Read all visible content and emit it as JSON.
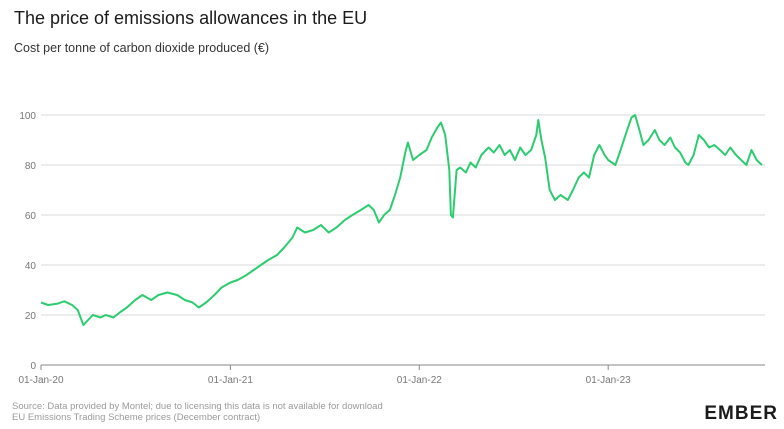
{
  "header": {
    "title": "The price of emissions allowances in the EU",
    "subtitle": "Cost per tonne of carbon dioxide produced (€)"
  },
  "footer": {
    "source_line1": "Source: Data provided by Montel; due to licensing this data is not available for download",
    "source_line2": "EU Emissions Trading Scheme prices (December contract)",
    "logo_text": "EMBER"
  },
  "colors": {
    "series": "#2ecc71",
    "grid": "#d9d9d9",
    "axis": "#8a8a8a"
  },
  "chart_data": {
    "type": "line",
    "title": "The price of emissions allowances in the EU",
    "subtitle": "Cost per tonne of carbon dioxide produced (€)",
    "xlabel": "",
    "ylabel": "",
    "ylim": [
      0,
      100
    ],
    "yticks": [
      0,
      20,
      40,
      60,
      80,
      100
    ],
    "xlim": [
      "2020-01-01",
      "2023-10-31"
    ],
    "xticks": [
      {
        "date": "2020-01-01",
        "label": "01-Jan-20"
      },
      {
        "date": "2021-01-01",
        "label": "01-Jan-21"
      },
      {
        "date": "2022-01-01",
        "label": "01-Jan-22"
      },
      {
        "date": "2023-01-01",
        "label": "01-Jan-23"
      }
    ],
    "grid": "horizontal",
    "legend": "none",
    "series": [
      {
        "values": [
          [
            "2020-01-01",
            25
          ],
          [
            "2020-01-15",
            24
          ],
          [
            "2020-02-01",
            24.5
          ],
          [
            "2020-02-15",
            25.5
          ],
          [
            "2020-03-01",
            24
          ],
          [
            "2020-03-12",
            22
          ],
          [
            "2020-03-23",
            16
          ],
          [
            "2020-04-01",
            18
          ],
          [
            "2020-04-10",
            20
          ],
          [
            "2020-04-25",
            19
          ],
          [
            "2020-05-05",
            20
          ],
          [
            "2020-05-20",
            19
          ],
          [
            "2020-06-01",
            21
          ],
          [
            "2020-06-15",
            23
          ],
          [
            "2020-07-01",
            26
          ],
          [
            "2020-07-15",
            28
          ],
          [
            "2020-08-01",
            26
          ],
          [
            "2020-08-15",
            28
          ],
          [
            "2020-09-01",
            29
          ],
          [
            "2020-09-20",
            28
          ],
          [
            "2020-10-05",
            26
          ],
          [
            "2020-10-20",
            25
          ],
          [
            "2020-11-01",
            23
          ],
          [
            "2020-11-15",
            25
          ],
          [
            "2020-12-01",
            28
          ],
          [
            "2020-12-15",
            31
          ],
          [
            "2021-01-01",
            33
          ],
          [
            "2021-01-15",
            34
          ],
          [
            "2021-02-01",
            36
          ],
          [
            "2021-02-15",
            38
          ],
          [
            "2021-03-01",
            40
          ],
          [
            "2021-03-15",
            42
          ],
          [
            "2021-04-01",
            44
          ],
          [
            "2021-04-15",
            47
          ],
          [
            "2021-05-01",
            51
          ],
          [
            "2021-05-10",
            55
          ],
          [
            "2021-05-25",
            53
          ],
          [
            "2021-06-10",
            54
          ],
          [
            "2021-06-25",
            56
          ],
          [
            "2021-07-10",
            53
          ],
          [
            "2021-07-25",
            55
          ],
          [
            "2021-08-10",
            58
          ],
          [
            "2021-08-25",
            60
          ],
          [
            "2021-09-10",
            62
          ],
          [
            "2021-09-25",
            64
          ],
          [
            "2021-10-05",
            62
          ],
          [
            "2021-10-15",
            57
          ],
          [
            "2021-10-25",
            60
          ],
          [
            "2021-11-05",
            62
          ],
          [
            "2021-11-15",
            68
          ],
          [
            "2021-11-25",
            75
          ],
          [
            "2021-12-05",
            85
          ],
          [
            "2021-12-10",
            89
          ],
          [
            "2021-12-20",
            82
          ],
          [
            "2022-01-01",
            84
          ],
          [
            "2022-01-15",
            86
          ],
          [
            "2022-01-25",
            91
          ],
          [
            "2022-02-05",
            95
          ],
          [
            "2022-02-12",
            97
          ],
          [
            "2022-02-20",
            92
          ],
          [
            "2022-02-28",
            78
          ],
          [
            "2022-03-03",
            60
          ],
          [
            "2022-03-07",
            59
          ],
          [
            "2022-03-14",
            78
          ],
          [
            "2022-03-21",
            79
          ],
          [
            "2022-04-01",
            77
          ],
          [
            "2022-04-10",
            81
          ],
          [
            "2022-04-20",
            79
          ],
          [
            "2022-05-01",
            84
          ],
          [
            "2022-05-15",
            87
          ],
          [
            "2022-05-25",
            85
          ],
          [
            "2022-06-05",
            88
          ],
          [
            "2022-06-15",
            84
          ],
          [
            "2022-06-25",
            86
          ],
          [
            "2022-07-05",
            82
          ],
          [
            "2022-07-15",
            87
          ],
          [
            "2022-07-25",
            84
          ],
          [
            "2022-08-05",
            86
          ],
          [
            "2022-08-15",
            92
          ],
          [
            "2022-08-19",
            98
          ],
          [
            "2022-08-25",
            90
          ],
          [
            "2022-09-01",
            83
          ],
          [
            "2022-09-10",
            70
          ],
          [
            "2022-09-20",
            66
          ],
          [
            "2022-10-01",
            68
          ],
          [
            "2022-10-15",
            66
          ],
          [
            "2022-10-25",
            70
          ],
          [
            "2022-11-05",
            75
          ],
          [
            "2022-11-15",
            77
          ],
          [
            "2022-11-25",
            75
          ],
          [
            "2022-12-05",
            84
          ],
          [
            "2022-12-15",
            88
          ],
          [
            "2022-12-25",
            84
          ],
          [
            "2023-01-01",
            82
          ],
          [
            "2023-01-15",
            80
          ],
          [
            "2023-01-25",
            86
          ],
          [
            "2023-02-05",
            93
          ],
          [
            "2023-02-15",
            99
          ],
          [
            "2023-02-22",
            100
          ],
          [
            "2023-03-01",
            95
          ],
          [
            "2023-03-10",
            88
          ],
          [
            "2023-03-20",
            90
          ],
          [
            "2023-04-01",
            94
          ],
          [
            "2023-04-10",
            90
          ],
          [
            "2023-04-20",
            88
          ],
          [
            "2023-05-01",
            91
          ],
          [
            "2023-05-10",
            87
          ],
          [
            "2023-05-20",
            85
          ],
          [
            "2023-05-30",
            81
          ],
          [
            "2023-06-05",
            80
          ],
          [
            "2023-06-15",
            84
          ],
          [
            "2023-06-25",
            92
          ],
          [
            "2023-07-05",
            90
          ],
          [
            "2023-07-15",
            87
          ],
          [
            "2023-07-25",
            88
          ],
          [
            "2023-08-05",
            86
          ],
          [
            "2023-08-15",
            84
          ],
          [
            "2023-08-25",
            87
          ],
          [
            "2023-09-05",
            84
          ],
          [
            "2023-09-15",
            82
          ],
          [
            "2023-09-25",
            80
          ],
          [
            "2023-10-05",
            86
          ],
          [
            "2023-10-15",
            82
          ],
          [
            "2023-10-25",
            80
          ]
        ]
      }
    ]
  }
}
